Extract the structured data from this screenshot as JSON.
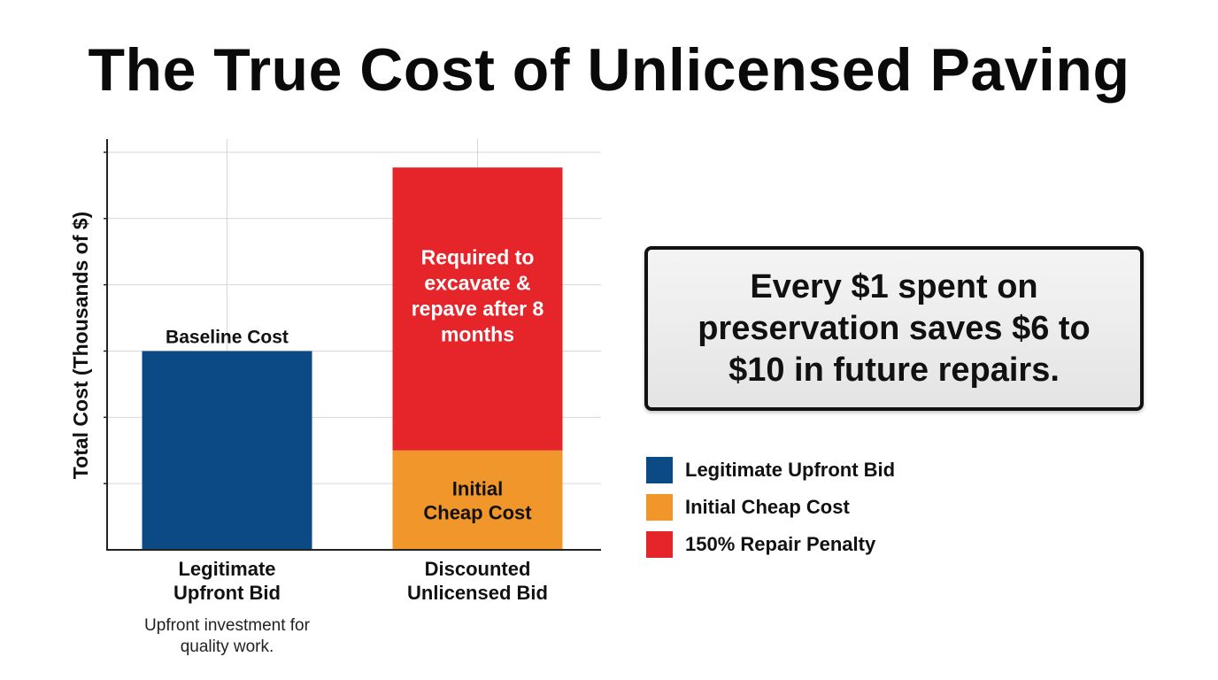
{
  "title": "The True Cost of Unlicensed Paving",
  "chart_data": {
    "type": "bar",
    "stacked": true,
    "ylabel": "Total Cost (Thousands of $)",
    "xlabel": "",
    "ylim": [
      0,
      6.2
    ],
    "y_ticks_labeled": false,
    "grid": true,
    "categories": [
      "Legitimate Upfront Bid",
      "Discounted Unlicensed Bid"
    ],
    "category_subtitles": [
      "Upfront investment for quality work.",
      ""
    ],
    "series": [
      {
        "name": "Legitimate Upfront Bid",
        "color": "#0b4a85",
        "values": [
          3.0,
          0
        ],
        "segment_labels": [
          "Baseline Cost",
          ""
        ]
      },
      {
        "name": "Initial Cheap Cost",
        "color": "#f0962a",
        "values": [
          0,
          1.5
        ],
        "segment_labels": [
          "",
          "Initial Cheap Cost"
        ]
      },
      {
        "name": "150% Repair Penalty",
        "color": "#e5252a",
        "values": [
          0,
          4.27
        ],
        "segment_labels": [
          "",
          "Required to excavate & repave after 8 months"
        ]
      }
    ],
    "legend_position": "right"
  },
  "callout": {
    "text": "Every $1 spent on preservation saves $6 to $10 in future repairs."
  },
  "legend": [
    {
      "label": "Legitimate Upfront Bid",
      "color": "#0b4a85"
    },
    {
      "label": "Initial Cheap Cost",
      "color": "#f0962a"
    },
    {
      "label": "150% Repair Penalty",
      "color": "#e5252a"
    }
  ]
}
